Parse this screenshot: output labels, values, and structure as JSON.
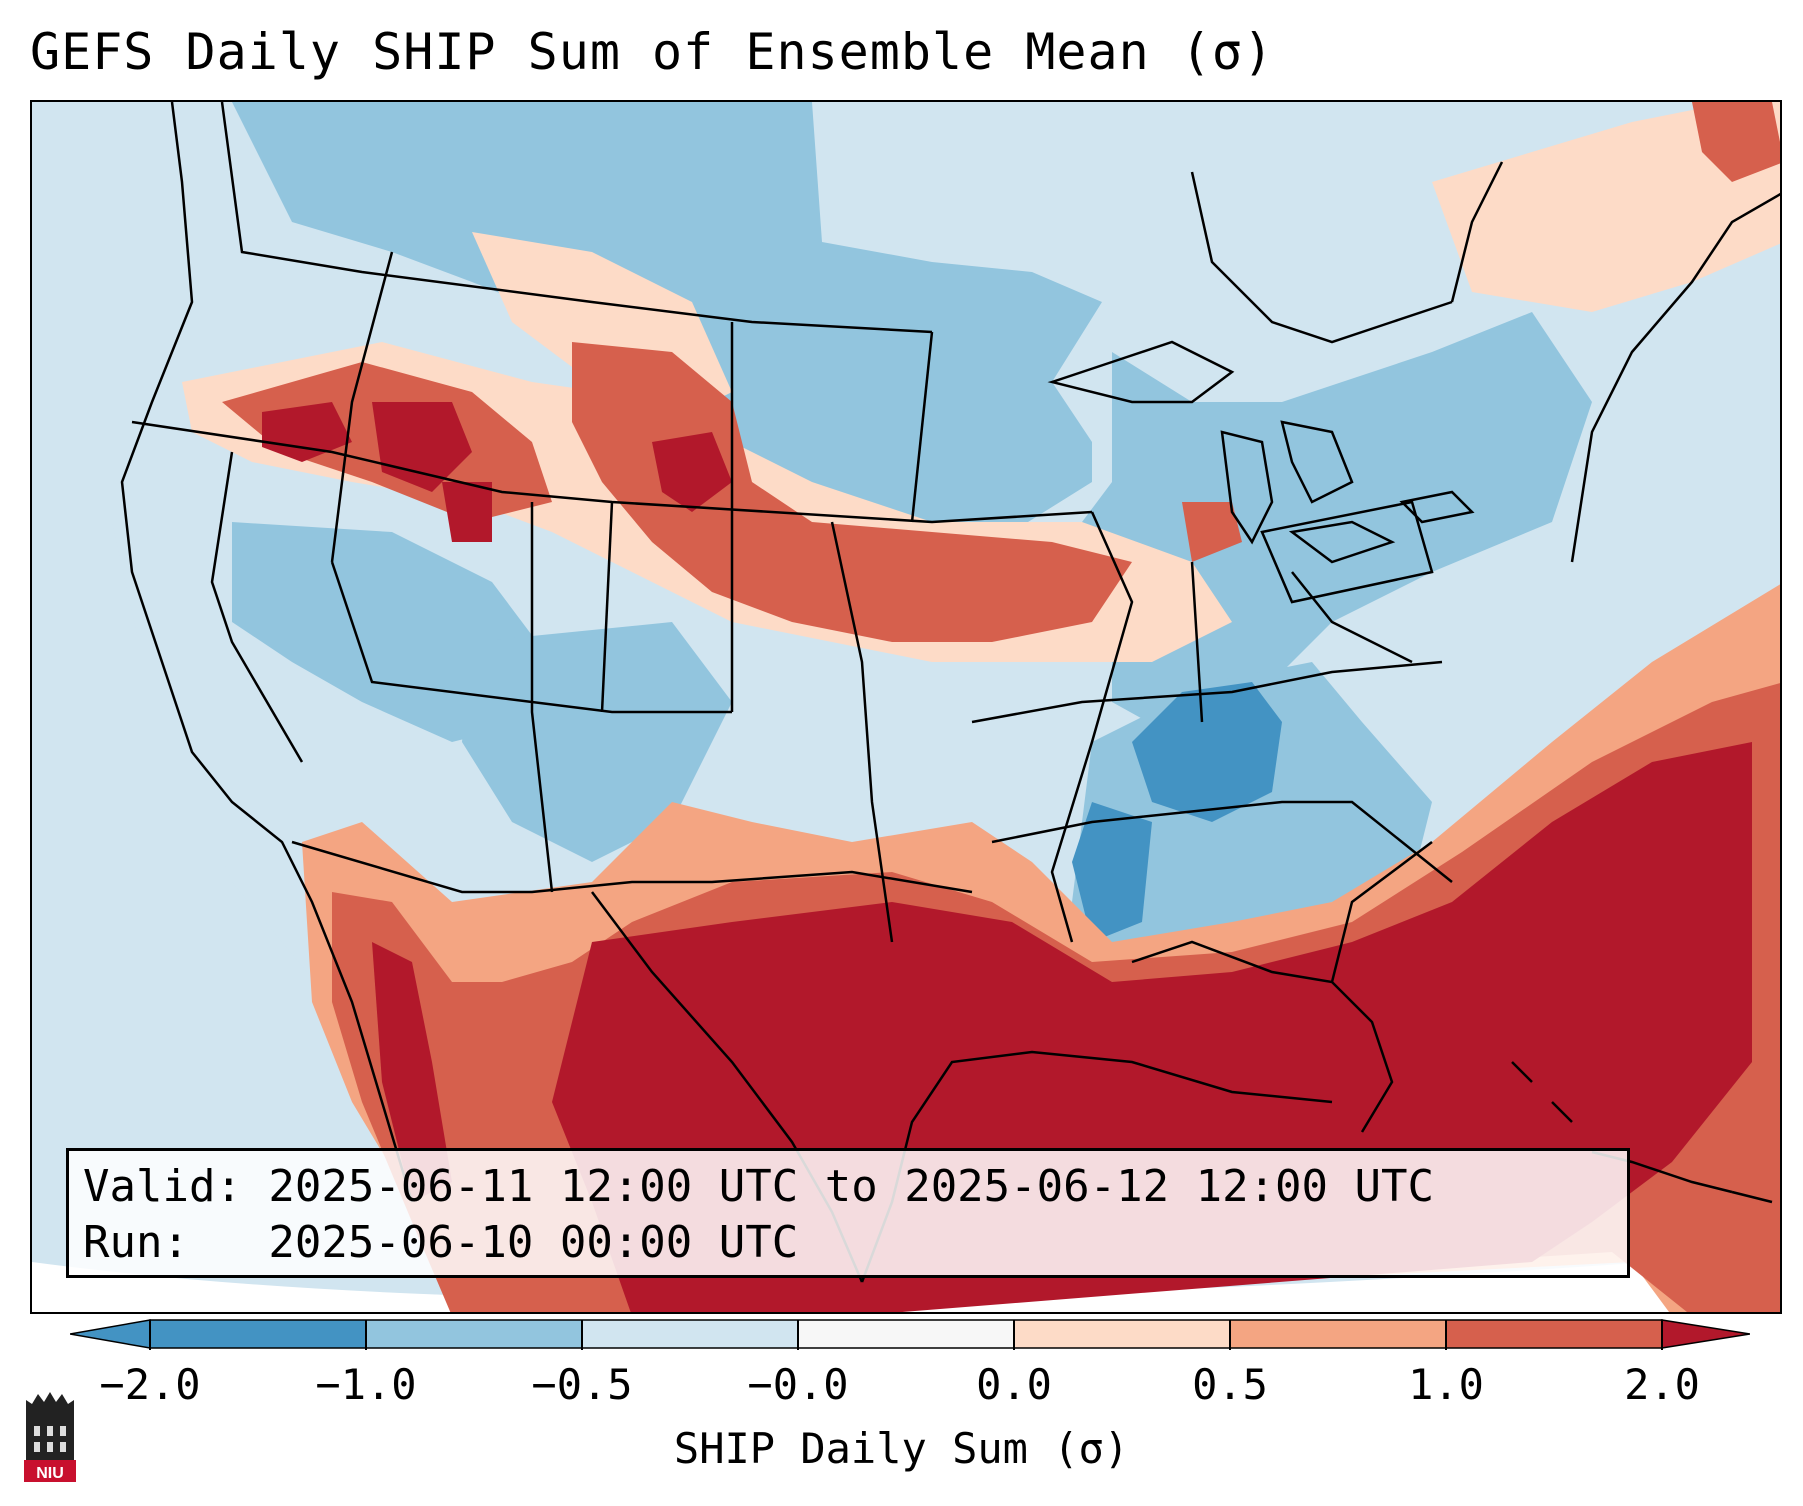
{
  "title": "GEFS Daily SHIP Sum of Ensemble Mean (σ)",
  "valid_line": "Valid: 2025-06-11 12:00 UTC to 2025-06-12 12:00 UTC",
  "run_line": "Run:   2025-06-10 00:00 UTC",
  "colorbar": {
    "ticks": [
      "−2.0",
      "−1.0",
      "−0.5",
      "−0.0",
      "0.0",
      "0.5",
      "1.0",
      "2.0"
    ],
    "colors": [
      "#4393c3",
      "#92c5de",
      "#d1e5f0",
      "#f7f7f7",
      "#fddbc7",
      "#f4a582",
      "#d6604d",
      "#b2182b"
    ],
    "label": "SHIP Daily Sum (σ)"
  },
  "logo": {
    "text": "NIU"
  }
}
